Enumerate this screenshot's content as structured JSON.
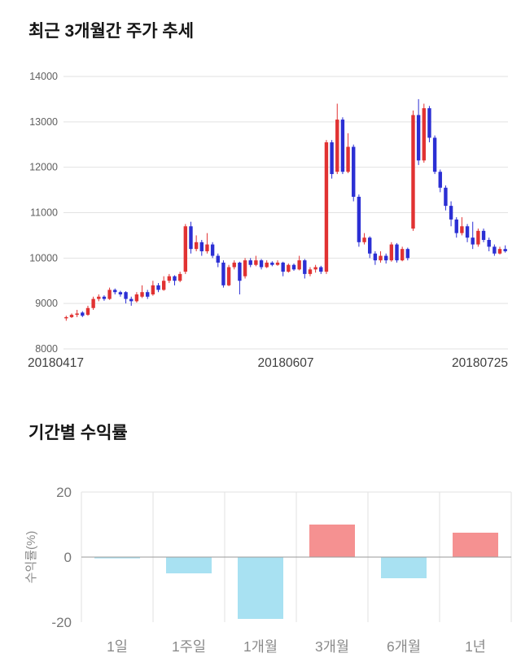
{
  "price_section": {
    "title": "최근 3개월간 주가 추세"
  },
  "returns_section": {
    "title": "기간별 수익률"
  },
  "chart_data": [
    {
      "type": "candlestick",
      "title": "최근 3개월간 주가 추세",
      "ylim": [
        8000,
        14000
      ],
      "y_ticks": [
        14000,
        13000,
        12000,
        11000,
        10000,
        9000,
        8000
      ],
      "x_tick_labels": [
        "20180417",
        "20180607",
        "20180725"
      ],
      "colors": {
        "up": "#e13232",
        "down": "#2b2fd4",
        "grid": "#e2e2e2",
        "tick_text": "#5f5f5f",
        "date_text": "#3f3f3f"
      },
      "candles_ohlc": [
        [
          8680,
          8730,
          8620,
          8700
        ],
        [
          8700,
          8780,
          8680,
          8750
        ],
        [
          8750,
          8860,
          8700,
          8780
        ],
        [
          8800,
          8830,
          8700,
          8730
        ],
        [
          8750,
          8950,
          8730,
          8900
        ],
        [
          8900,
          9150,
          8860,
          9100
        ],
        [
          9100,
          9200,
          9050,
          9150
        ],
        [
          9150,
          9180,
          9060,
          9100
        ],
        [
          9100,
          9350,
          9080,
          9300
        ],
        [
          9300,
          9330,
          9200,
          9250
        ],
        [
          9250,
          9280,
          9150,
          9200
        ],
        [
          9250,
          9270,
          9000,
          9100
        ],
        [
          9100,
          9150,
          8950,
          9050
        ],
        [
          9050,
          9250,
          9020,
          9200
        ],
        [
          9150,
          9400,
          9120,
          9250
        ],
        [
          9250,
          9300,
          9100,
          9150
        ],
        [
          9200,
          9500,
          9170,
          9400
        ],
        [
          9400,
          9450,
          9250,
          9300
        ],
        [
          9300,
          9600,
          9280,
          9500
        ],
        [
          9500,
          9650,
          9450,
          9600
        ],
        [
          9600,
          9620,
          9400,
          9500
        ],
        [
          9500,
          9700,
          9470,
          9650
        ],
        [
          9700,
          10750,
          9650,
          10700
        ],
        [
          10700,
          10800,
          10100,
          10200
        ],
        [
          10200,
          10500,
          10150,
          10350
        ],
        [
          10350,
          10400,
          10050,
          10150
        ],
        [
          10150,
          10550,
          10100,
          10300
        ],
        [
          10300,
          10350,
          10000,
          10050
        ],
        [
          10050,
          10100,
          9800,
          9900
        ],
        [
          9900,
          9950,
          9350,
          9400
        ],
        [
          9400,
          9850,
          9380,
          9800
        ],
        [
          9800,
          9950,
          9750,
          9900
        ],
        [
          9900,
          9920,
          9200,
          9500
        ],
        [
          9600,
          10000,
          9550,
          9950
        ],
        [
          9950,
          10000,
          9800,
          9850
        ],
        [
          9850,
          10050,
          9820,
          9950
        ],
        [
          9950,
          9980,
          9750,
          9800
        ],
        [
          9800,
          9950,
          9780,
          9900
        ],
        [
          9900,
          9930,
          9820,
          9850
        ],
        [
          9850,
          9950,
          9830,
          9900
        ],
        [
          9900,
          9920,
          9600,
          9700
        ],
        [
          9700,
          9880,
          9680,
          9850
        ],
        [
          9850,
          9880,
          9720,
          9750
        ],
        [
          9750,
          10050,
          9730,
          9950
        ],
        [
          9950,
          9980,
          9550,
          9650
        ],
        [
          9650,
          9800,
          9600,
          9750
        ],
        [
          9750,
          9850,
          9680,
          9800
        ],
        [
          9800,
          9830,
          9650,
          9700
        ],
        [
          9700,
          12600,
          9650,
          12550
        ],
        [
          12550,
          12600,
          11750,
          11850
        ],
        [
          11900,
          13400,
          11850,
          13050
        ],
        [
          13050,
          13100,
          11850,
          11900
        ],
        [
          11900,
          12750,
          11870,
          12450
        ],
        [
          12450,
          12500,
          11250,
          11350
        ],
        [
          11350,
          11400,
          10250,
          10350
        ],
        [
          10350,
          10550,
          10300,
          10450
        ],
        [
          10450,
          10480,
          10000,
          10100
        ],
        [
          10100,
          10150,
          9850,
          9950
        ],
        [
          9950,
          10150,
          9900,
          10050
        ],
        [
          10050,
          10100,
          9880,
          9950
        ],
        [
          9950,
          10350,
          9920,
          10300
        ],
        [
          10300,
          10330,
          9900,
          9950
        ],
        [
          9950,
          10250,
          9930,
          10200
        ],
        [
          10200,
          10230,
          9950,
          10000
        ],
        [
          10650,
          13250,
          10600,
          13150
        ],
        [
          13150,
          13500,
          12050,
          12150
        ],
        [
          12150,
          13400,
          12100,
          13300
        ],
        [
          13300,
          13350,
          12550,
          12650
        ],
        [
          12650,
          12700,
          11850,
          11900
        ],
        [
          11900,
          11950,
          11450,
          11550
        ],
        [
          11550,
          11600,
          11050,
          11150
        ],
        [
          11150,
          11250,
          10700,
          10850
        ],
        [
          10850,
          10900,
          10450,
          10550
        ],
        [
          10550,
          10900,
          10500,
          10700
        ],
        [
          10700,
          10750,
          10350,
          10450
        ],
        [
          10450,
          10800,
          10200,
          10300
        ],
        [
          10300,
          10650,
          10250,
          10600
        ],
        [
          10600,
          10650,
          10350,
          10400
        ],
        [
          10400,
          10450,
          10150,
          10250
        ],
        [
          10250,
          10300,
          10050,
          10100
        ],
        [
          10100,
          10250,
          10080,
          10200
        ],
        [
          10200,
          10280,
          10120,
          10150
        ]
      ]
    },
    {
      "type": "bar",
      "title": "기간별 수익률",
      "ylabel": "수익률(%)",
      "categories": [
        "1일",
        "1주일",
        "1개월",
        "3개월",
        "6개월",
        "1년"
      ],
      "values": [
        -0.4,
        -5,
        -19,
        10,
        -6.5,
        7.5
      ],
      "ylim": [
        -20,
        20
      ],
      "y_ticks": [
        20,
        0,
        -20
      ],
      "legend": "none",
      "grid": "vertical-separators",
      "colors": {
        "positive": "#f59191",
        "negative": "#a8e1f2",
        "grid": "#e2e2e2",
        "zero_line": "#9a9a9a",
        "tick_text": "#777777",
        "category_text": "#8a8a8a",
        "ylabel_text": "#8a8a8a"
      }
    }
  ]
}
